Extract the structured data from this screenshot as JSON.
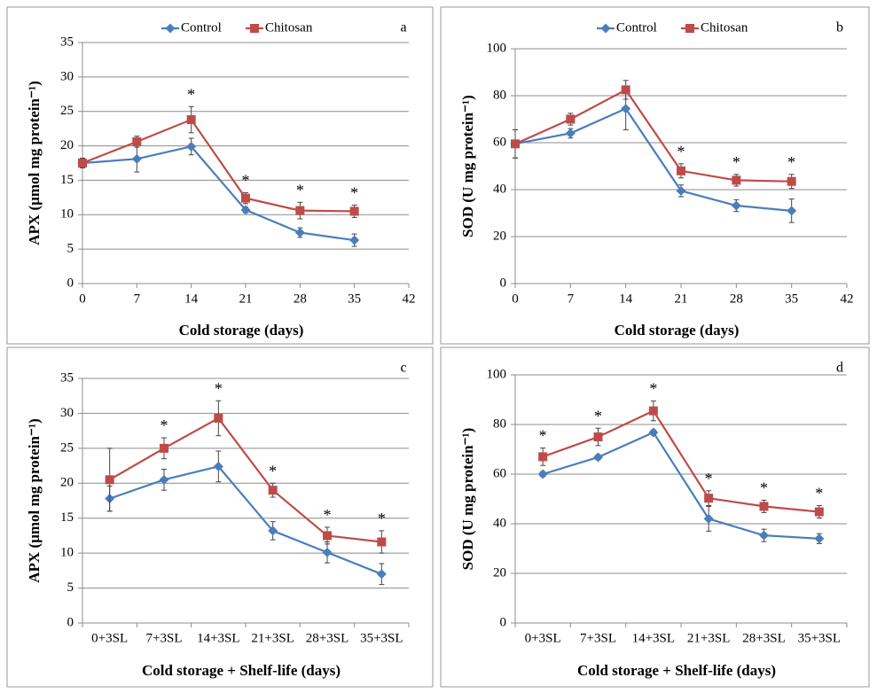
{
  "chart_data": [
    {
      "type": "line",
      "panel_label": "a",
      "ylabel": "APX (µmol mg protein⁻¹)",
      "xlabel": "Cold storage (days)",
      "x": [
        0,
        7,
        14,
        21,
        28,
        35
      ],
      "xlim": [
        0,
        42
      ],
      "xticks": [
        0,
        7,
        14,
        21,
        28,
        35,
        42
      ],
      "ylim": [
        0,
        35
      ],
      "yticks": [
        0,
        5,
        10,
        15,
        20,
        25,
        30,
        35
      ],
      "grid": true,
      "legend": "top",
      "series": [
        {
          "name": "Control",
          "color": "#4a7ebb",
          "marker": "diamond",
          "values": [
            17.5,
            18.1,
            19.9,
            10.7,
            7.4,
            6.3
          ],
          "errors": [
            0.7,
            1.9,
            1.2,
            0.4,
            0.7,
            0.9
          ]
        },
        {
          "name": "Chitosan",
          "color": "#be4b48",
          "marker": "square",
          "values": [
            17.5,
            20.6,
            23.8,
            12.4,
            10.6,
            10.5
          ],
          "errors": [
            0.7,
            0.8,
            1.9,
            0.8,
            1.2,
            0.9
          ]
        }
      ],
      "significance": [
        null,
        null,
        "*",
        "*",
        "*",
        "*"
      ]
    },
    {
      "type": "line",
      "panel_label": "b",
      "ylabel": "SOD (U mg protein⁻¹)",
      "xlabel": "Cold storage (days)",
      "x": [
        0,
        7,
        14,
        21,
        28,
        35
      ],
      "xlim": [
        0,
        42
      ],
      "xticks": [
        0,
        7,
        14,
        21,
        28,
        35,
        42
      ],
      "ylim": [
        0,
        100
      ],
      "yticks": [
        0,
        20,
        40,
        60,
        80,
        100
      ],
      "grid": true,
      "legend": "top",
      "series": [
        {
          "name": "Control",
          "color": "#4a7ebb",
          "marker": "diamond",
          "values": [
            59.5,
            64,
            74.5,
            39.5,
            33.2,
            31
          ],
          "errors": [
            6,
            2,
            9,
            2.5,
            2.5,
            5
          ]
        },
        {
          "name": "Chitosan",
          "color": "#be4b48",
          "marker": "square",
          "values": [
            59.5,
            70,
            82.5,
            48,
            44,
            43.5
          ],
          "errors": [
            6,
            2.5,
            4,
            3,
            2.5,
            3
          ]
        }
      ],
      "significance": [
        null,
        null,
        null,
        "*",
        "*",
        "*"
      ]
    },
    {
      "type": "line",
      "panel_label": "c",
      "ylabel": "APX (µmol mg protein⁻¹)",
      "xlabel": "Cold storage + Shelf-life (days)",
      "categories": [
        "0+3SL",
        "7+3SL",
        "14+3SL",
        "21+3SL",
        "28+3SL",
        "35+3SL"
      ],
      "ylim": [
        0,
        35
      ],
      "yticks": [
        0,
        5,
        10,
        15,
        20,
        25,
        30,
        35
      ],
      "grid": true,
      "series": [
        {
          "name": "Control",
          "color": "#4a7ebb",
          "marker": "diamond",
          "values": [
            17.8,
            20.5,
            22.4,
            13.2,
            10.1,
            7.0
          ],
          "errors": [
            1.8,
            1.5,
            2.2,
            1.3,
            1.5,
            1.5
          ]
        },
        {
          "name": "Chitosan",
          "color": "#be4b48",
          "marker": "square",
          "values": [
            20.5,
            25,
            29.3,
            19,
            12.5,
            11.6
          ],
          "errors": [
            4.5,
            1.5,
            2.5,
            1,
            1.2,
            1.6
          ]
        }
      ],
      "significance": [
        null,
        "*",
        "*",
        "*",
        "*",
        "*"
      ]
    },
    {
      "type": "line",
      "panel_label": "d",
      "ylabel": "SOD (U mg protein⁻¹)",
      "xlabel": "Cold storage + Shelf-life (days)",
      "categories": [
        "0+3SL",
        "7+3SL",
        "14+3SL",
        "21+3SL",
        "28+3SL",
        "35+3SL"
      ],
      "ylim": [
        0,
        100
      ],
      "yticks": [
        0,
        20,
        40,
        60,
        80,
        100
      ],
      "grid": true,
      "series": [
        {
          "name": "Control",
          "color": "#4a7ebb",
          "marker": "diamond",
          "values": [
            60,
            66.8,
            76.8,
            42,
            35.3,
            34
          ],
          "errors": [
            1,
            1,
            1,
            5,
            2.5,
            2
          ]
        },
        {
          "name": "Chitosan",
          "color": "#be4b48",
          "marker": "square",
          "values": [
            67,
            75,
            85.5,
            50.3,
            47,
            44.8
          ],
          "errors": [
            3.5,
            3.5,
            4,
            3,
            2.5,
            2.5
          ]
        }
      ],
      "significance": [
        "*",
        "*",
        "*",
        "*",
        "*",
        "*"
      ]
    }
  ]
}
